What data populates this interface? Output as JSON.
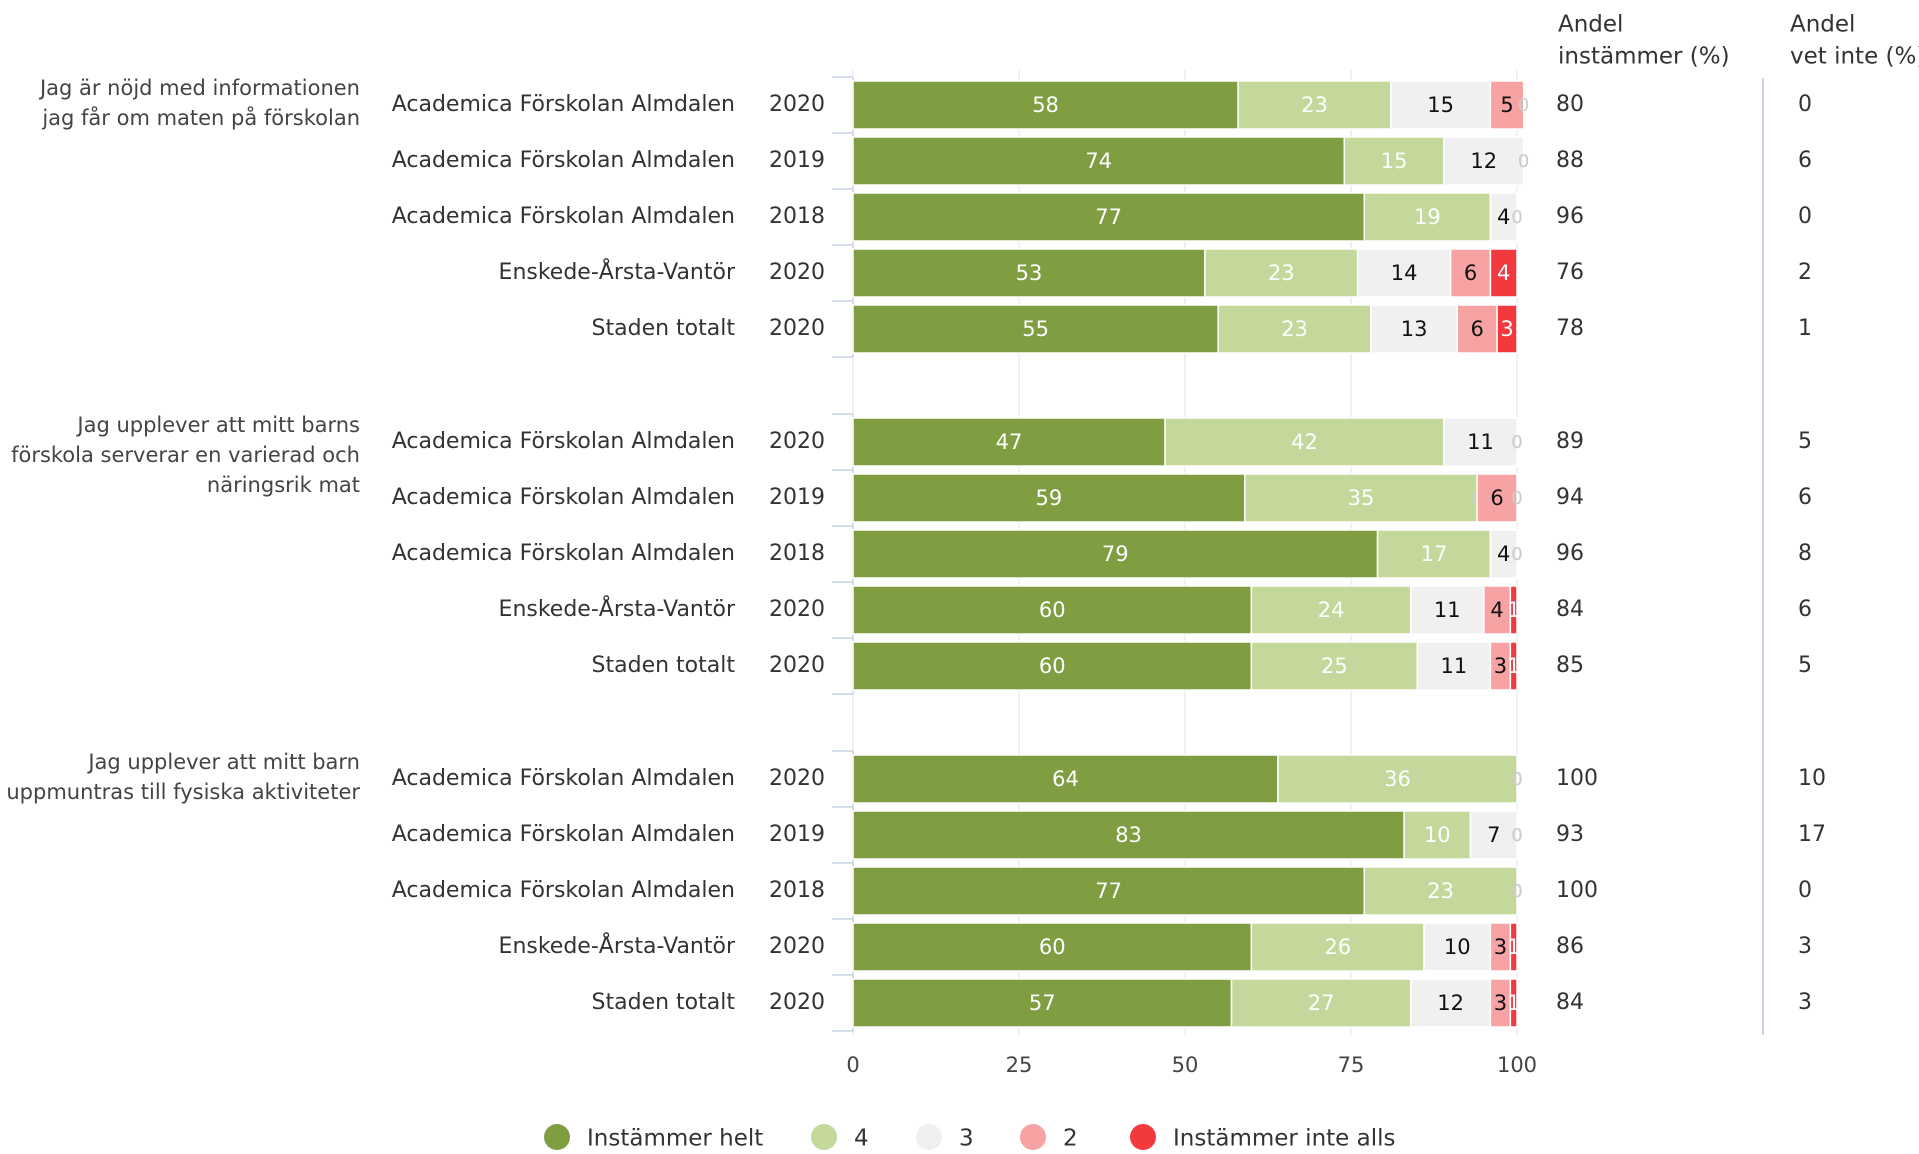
{
  "colors": {
    "Instämmer helt": "#7f9e42",
    "4": "#c4d89b",
    "3": "#f0f0f0",
    "2": "#f7a3a3",
    "Instämmer inte alls": "#f2393e"
  },
  "chart_data": {
    "type": "bar",
    "orientation": "horizontal",
    "stacked": true,
    "xlim": [
      0,
      100
    ],
    "xticks": [
      "0",
      "25",
      "50",
      "75",
      "100"
    ],
    "legend": [
      "Instämmer helt",
      "4",
      "3",
      "2",
      "Instämmer inte alls"
    ],
    "legend_position": "bottom",
    "grid": true,
    "col_headers": {
      "andel_instammer": [
        "Andel",
        "instämmer (%)"
      ],
      "andel_vet_inte": [
        "Andel",
        "vet inte (%)"
      ]
    },
    "groups": [
      {
        "question": [
          "Jag är nöjd med informationen",
          "jag får om maten på förskolan"
        ],
        "rows": [
          {
            "unit": "Academica Förskolan Almdalen",
            "year": "2020",
            "values": [
              58,
              23,
              15,
              5,
              0
            ],
            "instammer": "80",
            "vet_inte": "0"
          },
          {
            "unit": "Academica Förskolan Almdalen",
            "year": "2019",
            "values": [
              74,
              15,
              12,
              0,
              0
            ],
            "instammer": "88",
            "vet_inte": "6"
          },
          {
            "unit": "Academica Förskolan Almdalen",
            "year": "2018",
            "values": [
              77,
              19,
              4,
              0,
              0
            ],
            "instammer": "96",
            "vet_inte": "0"
          },
          {
            "unit": "Enskede-Årsta-Vantör",
            "year": "2020",
            "values": [
              53,
              23,
              14,
              6,
              4
            ],
            "instammer": "76",
            "vet_inte": "2"
          },
          {
            "unit": "Staden totalt",
            "year": "2020",
            "values": [
              55,
              23,
              13,
              6,
              3
            ],
            "instammer": "78",
            "vet_inte": "1"
          }
        ]
      },
      {
        "question": [
          "Jag upplever att mitt barns",
          "förskola serverar en varierad och",
          "näringsrik mat"
        ],
        "rows": [
          {
            "unit": "Academica Förskolan Almdalen",
            "year": "2020",
            "values": [
              47,
              42,
              11,
              0,
              0
            ],
            "instammer": "89",
            "vet_inte": "5"
          },
          {
            "unit": "Academica Förskolan Almdalen",
            "year": "2019",
            "values": [
              59,
              35,
              0,
              6,
              0
            ],
            "instammer": "94",
            "vet_inte": "6"
          },
          {
            "unit": "Academica Förskolan Almdalen",
            "year": "2018",
            "values": [
              79,
              17,
              4,
              0,
              0
            ],
            "instammer": "96",
            "vet_inte": "8"
          },
          {
            "unit": "Enskede-Årsta-Vantör",
            "year": "2020",
            "values": [
              60,
              24,
              11,
              4,
              1
            ],
            "instammer": "84",
            "vet_inte": "6"
          },
          {
            "unit": "Staden totalt",
            "year": "2020",
            "values": [
              60,
              25,
              11,
              3,
              1
            ],
            "instammer": "85",
            "vet_inte": "5"
          }
        ]
      },
      {
        "question": [
          "Jag upplever att mitt barn",
          "uppmuntras till fysiska aktiviteter"
        ],
        "rows": [
          {
            "unit": "Academica Förskolan Almdalen",
            "year": "2020",
            "values": [
              64,
              36,
              0,
              0,
              0
            ],
            "instammer": "100",
            "vet_inte": "10"
          },
          {
            "unit": "Academica Förskolan Almdalen",
            "year": "2019",
            "values": [
              83,
              10,
              7,
              0,
              0
            ],
            "instammer": "93",
            "vet_inte": "17"
          },
          {
            "unit": "Academica Förskolan Almdalen",
            "year": "2018",
            "values": [
              77,
              23,
              0,
              0,
              0
            ],
            "instammer": "100",
            "vet_inte": "0"
          },
          {
            "unit": "Enskede-Årsta-Vantör",
            "year": "2020",
            "values": [
              60,
              26,
              10,
              3,
              1
            ],
            "instammer": "86",
            "vet_inte": "3"
          },
          {
            "unit": "Staden totalt",
            "year": "2020",
            "values": [
              57,
              27,
              12,
              3,
              1
            ],
            "instammer": "84",
            "vet_inte": "3"
          }
        ]
      }
    ]
  }
}
